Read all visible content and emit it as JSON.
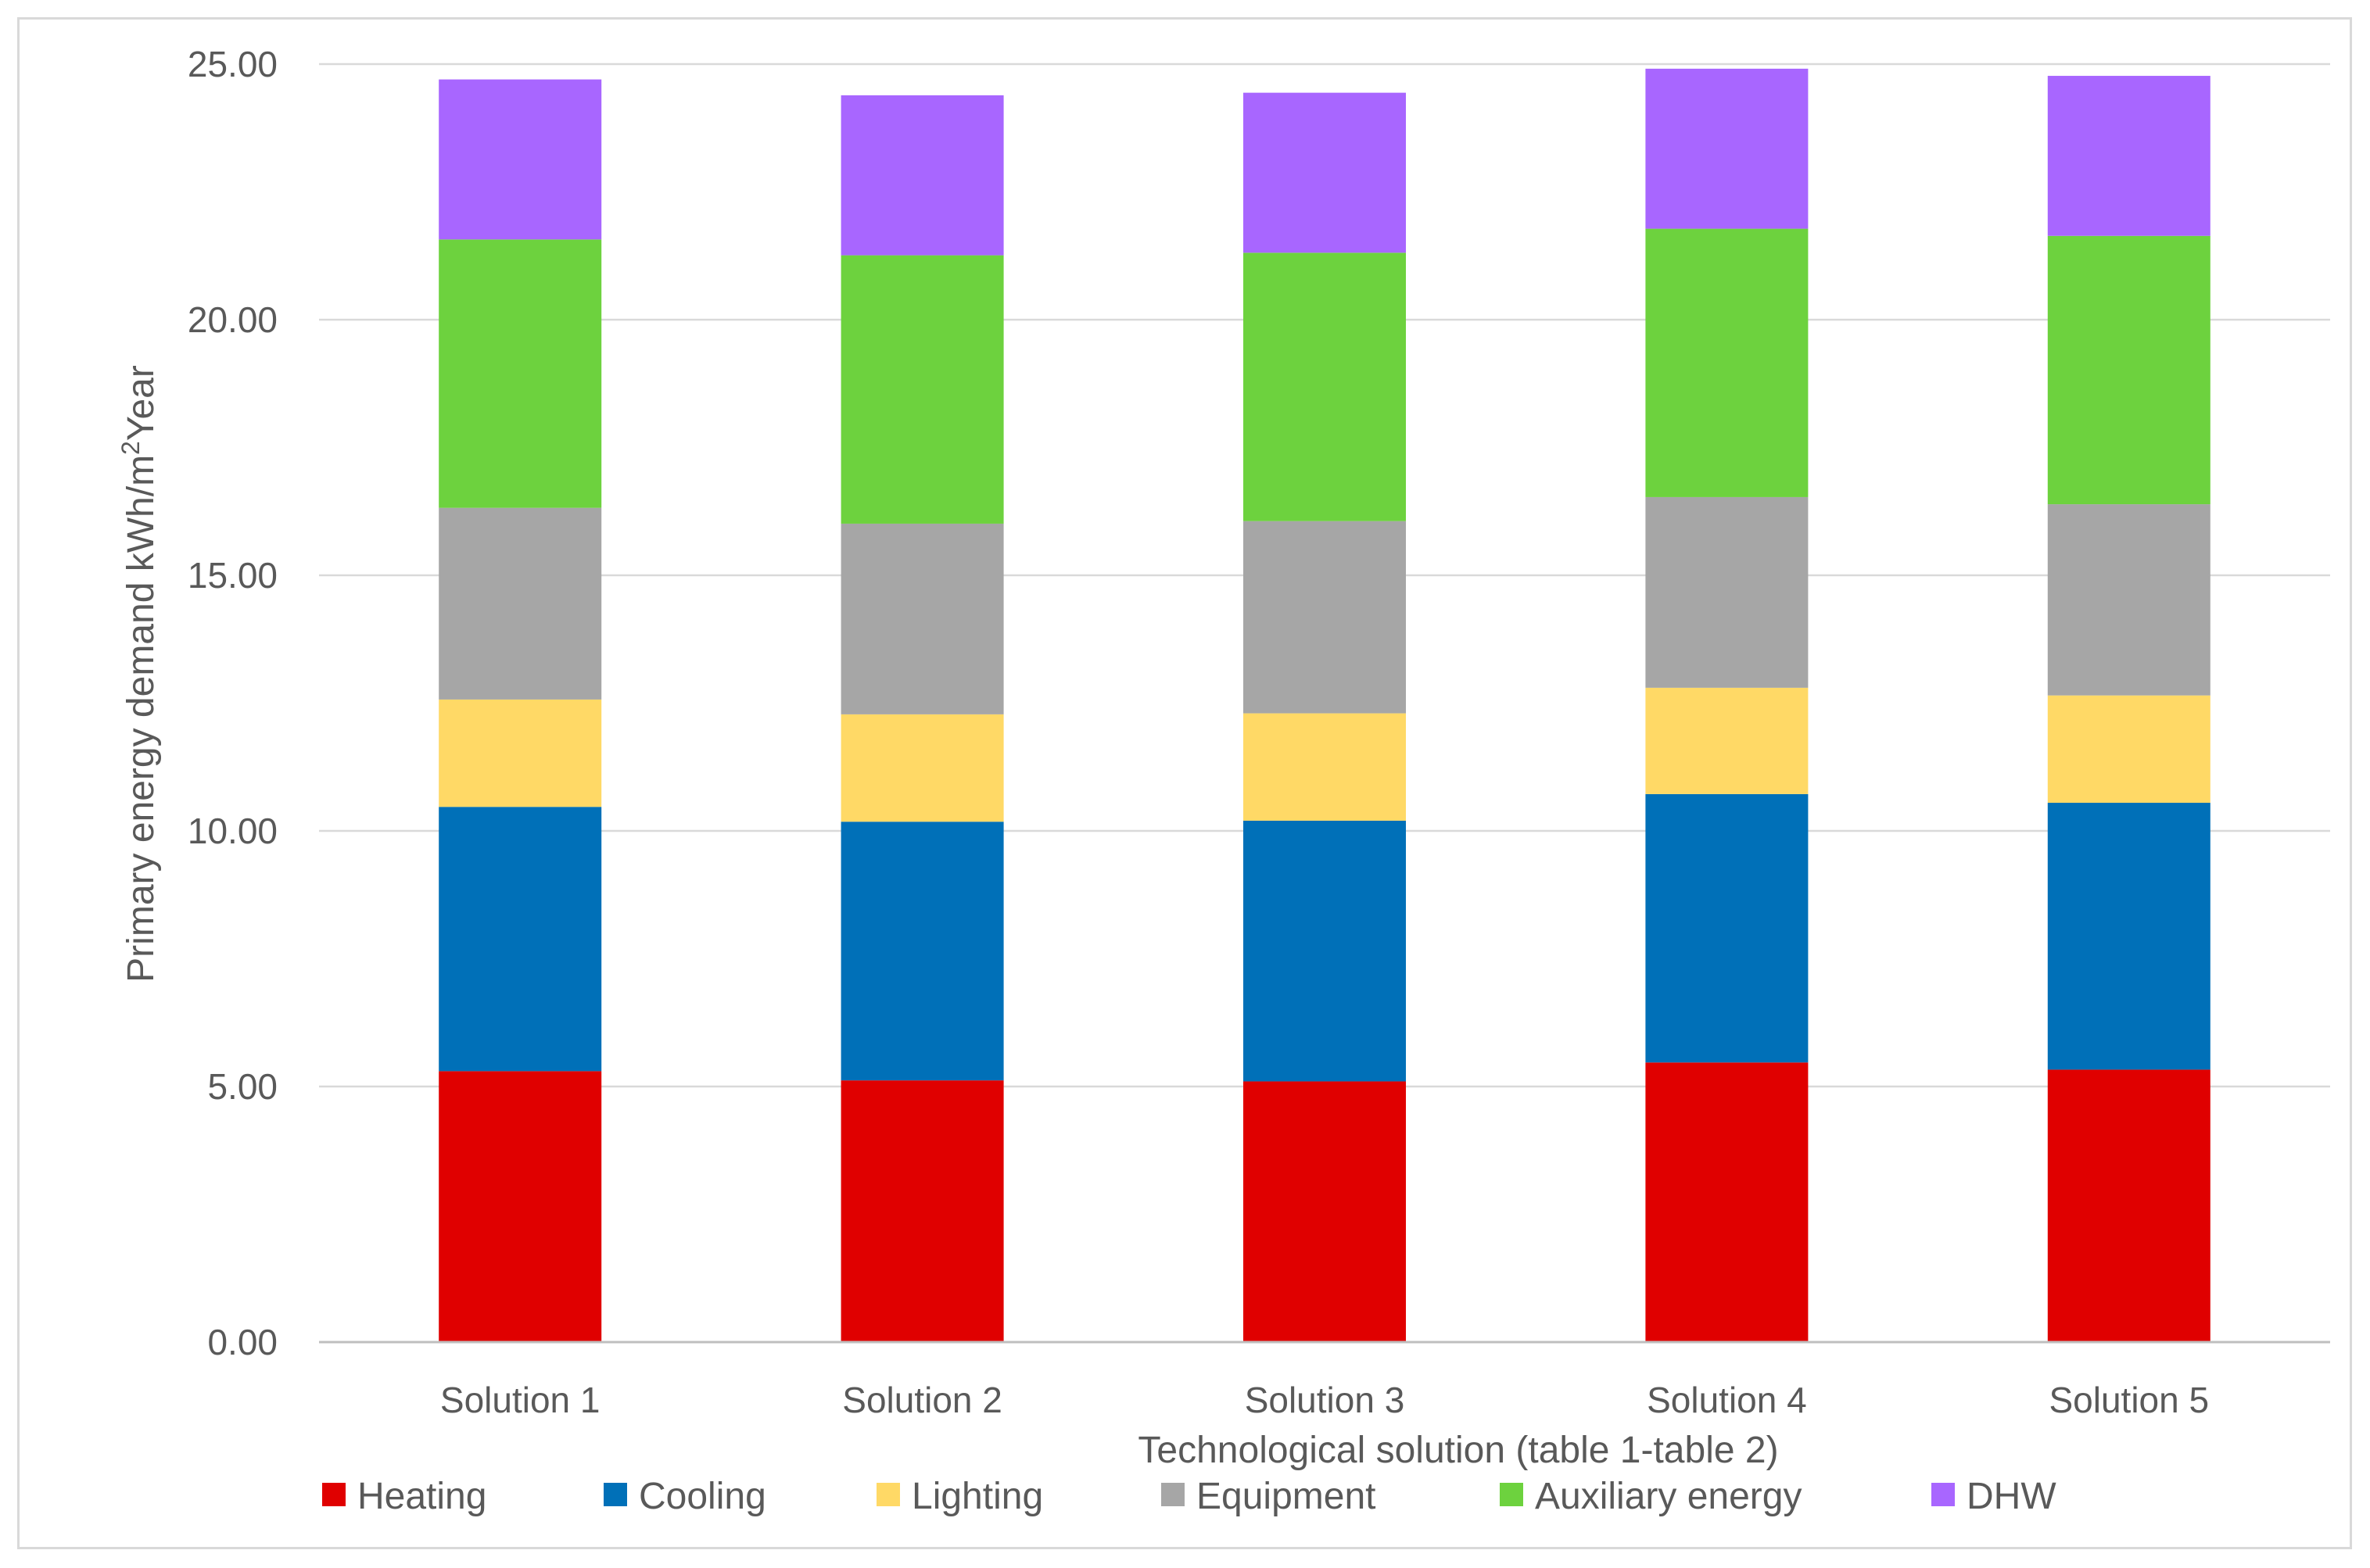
{
  "chart_data": {
    "type": "bar",
    "stacked": true,
    "title": "",
    "xlabel": "Technological solution (table 1-table 2)",
    "ylabel_main": "Primary energy demand kWh/m",
    "ylabel_sup": "2",
    "ylabel_tail": "Year",
    "ylim": [
      0,
      25
    ],
    "yticks": [
      "0.00",
      "5.00",
      "10.00",
      "15.00",
      "20.00",
      "25.00"
    ],
    "ytick_values": [
      0,
      5,
      10,
      15,
      20,
      25
    ],
    "grid": true,
    "legend_position": "bottom",
    "categories": [
      "Solution 1",
      "Solution 2",
      "Solution 3",
      "Solution 4",
      "Solution 5"
    ],
    "series": [
      {
        "name": "Heating",
        "color": "#e00000",
        "values": [
          5.3,
          5.12,
          5.1,
          5.47,
          5.33
        ]
      },
      {
        "name": "Cooling",
        "color": "#0070b8",
        "values": [
          5.17,
          5.06,
          5.1,
          5.25,
          5.22
        ]
      },
      {
        "name": "Lighting",
        "color": "#ffd966",
        "values": [
          2.1,
          2.1,
          2.1,
          2.08,
          2.1
        ]
      },
      {
        "name": "Equipment",
        "color": "#a6a6a6",
        "values": [
          3.75,
          3.73,
          3.76,
          3.73,
          3.74
        ]
      },
      {
        "name": "Auxiliary energy",
        "color": "#6dd23e",
        "values": [
          5.25,
          5.25,
          5.25,
          5.25,
          5.25
        ]
      },
      {
        "name": "DHW",
        "color": "#a866ff",
        "values": [
          3.13,
          3.13,
          3.13,
          3.13,
          3.13
        ]
      }
    ]
  }
}
